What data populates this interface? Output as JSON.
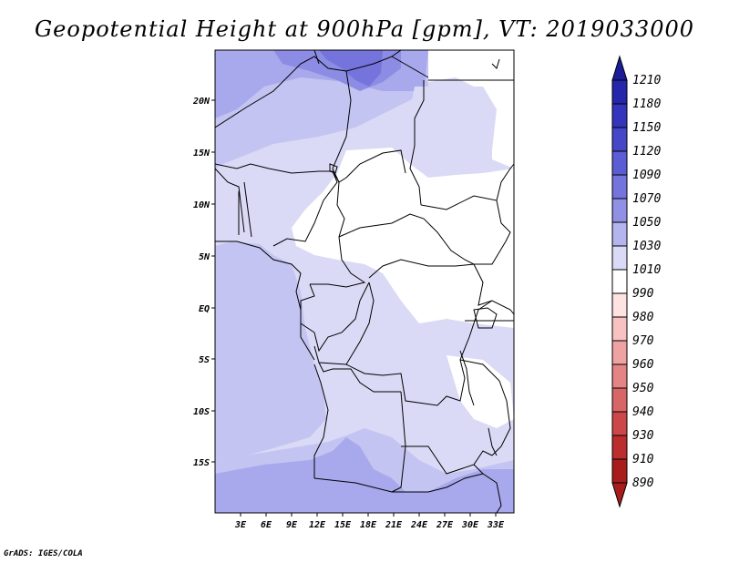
{
  "title": "Geopotential Height at 900hPa [gpm], VT: 2019033000",
  "credit": "GrADS: IGES/COLA",
  "map": {
    "lat_labels": [
      "20N",
      "15N",
      "10N",
      "5N",
      "EQ",
      "5S",
      "10S",
      "15S"
    ],
    "lon_labels": [
      "3E",
      "6E",
      "9E",
      "12E",
      "15E",
      "18E",
      "21E",
      "24E",
      "27E",
      "30E",
      "33E"
    ]
  },
  "colorbar": {
    "levels": [
      "1210",
      "1180",
      "1150",
      "1120",
      "1090",
      "1070",
      "1050",
      "1030",
      "1010",
      "990",
      "980",
      "970",
      "960",
      "950",
      "940",
      "930",
      "910",
      "890"
    ],
    "colors": [
      "#1c1c9a",
      "#2626ac",
      "#3434bc",
      "#4646c8",
      "#5c5cd4",
      "#7474dc",
      "#9090e4",
      "#b4b4ee",
      "#dadaf6",
      "#ffffff",
      "#ffe2e2",
      "#f8c2c2",
      "#eea2a2",
      "#e48484",
      "#d86666",
      "#cc4848",
      "#bc2e2e",
      "#a81c1c"
    ]
  }
}
